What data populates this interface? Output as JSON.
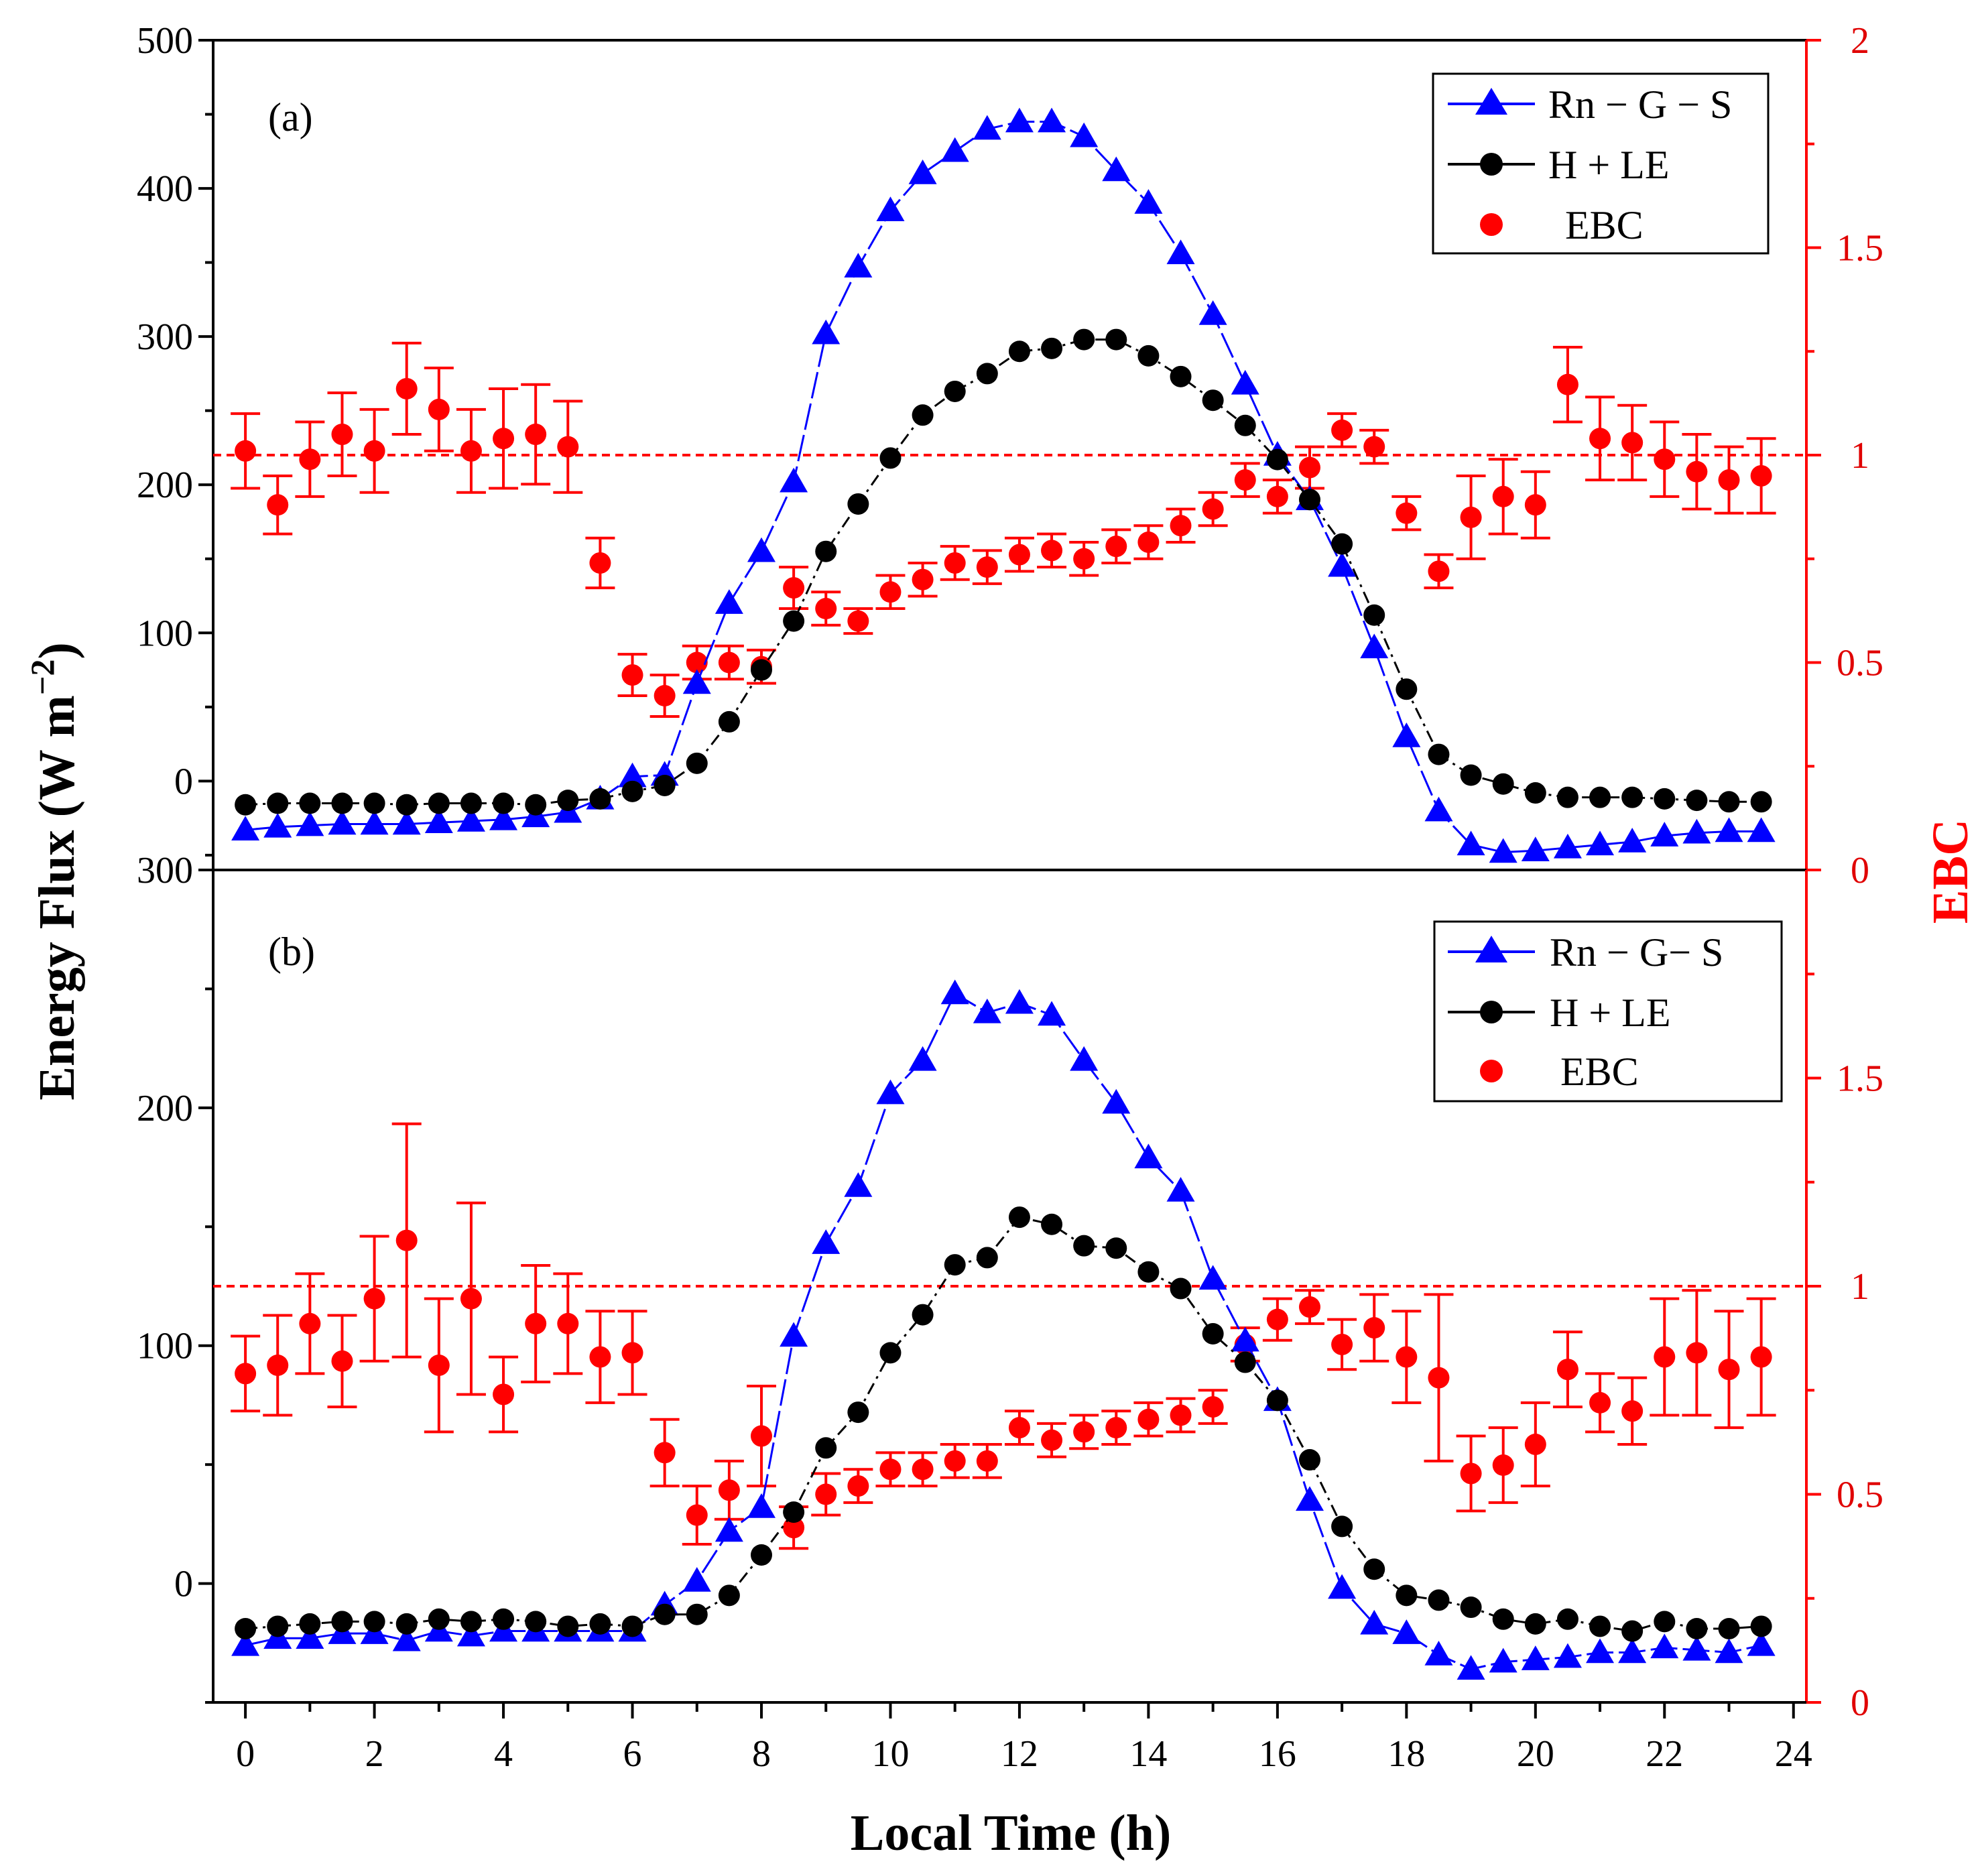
{
  "chart_data": [
    {
      "type": "line",
      "panel": "(a)",
      "x": [
        0,
        0.5,
        1,
        1.5,
        2,
        2.5,
        3,
        3.5,
        4,
        4.5,
        5,
        5.5,
        6,
        6.5,
        7,
        7.5,
        8,
        8.5,
        9,
        9.5,
        10,
        10.5,
        11,
        11.5,
        12,
        12.5,
        13,
        13.5,
        14,
        14.5,
        15,
        15.5,
        16,
        16.5,
        17,
        17.5,
        18,
        18.5,
        19,
        19.5,
        20,
        20.5,
        21,
        21.5,
        22,
        22.5,
        23,
        23.5
      ],
      "series": [
        {
          "name": "Rn − G − S",
          "axis": "left",
          "color": "#0000ff",
          "marker": "triangle",
          "values": [
            -33,
            -31,
            -30,
            -29,
            -29,
            -29,
            -28,
            -27,
            -26,
            -24,
            -21,
            -12,
            3,
            4,
            66,
            120,
            155,
            202,
            302,
            347,
            385,
            410,
            425,
            440,
            445,
            445,
            435,
            412,
            390,
            356,
            315,
            268,
            220,
            190,
            145,
            90,
            30,
            -20,
            -43,
            -48,
            -47,
            -45,
            -43,
            -41,
            -37,
            -35,
            -34,
            -34
          ]
        },
        {
          "name": "H + LE",
          "axis": "left",
          "color": "#000000",
          "marker": "circle",
          "values": [
            -16,
            -15,
            -15,
            -15,
            -15,
            -16,
            -15,
            -15,
            -15,
            -16,
            -13,
            -12,
            -7,
            -3,
            12,
            40,
            75,
            108,
            155,
            187,
            218,
            247,
            263,
            275,
            290,
            292,
            298,
            298,
            287,
            273,
            257,
            240,
            217,
            190,
            160,
            112,
            62,
            18,
            4,
            -2,
            -8,
            -11,
            -11,
            -11,
            -12,
            -13,
            -14,
            -14
          ]
        },
        {
          "name": "EBC",
          "axis": "right",
          "color": "#ff0000",
          "marker": "circle",
          "errorbars": true,
          "values": [
            1.01,
            0.88,
            0.99,
            1.05,
            1.01,
            1.16,
            1.11,
            1.01,
            1.04,
            1.05,
            1.02,
            0.74,
            0.47,
            0.42,
            0.5,
            0.5,
            0.49,
            0.68,
            0.63,
            0.6,
            0.67,
            0.7,
            0.74,
            0.73,
            0.76,
            0.77,
            0.75,
            0.78,
            0.79,
            0.83,
            0.87,
            0.94,
            0.9,
            0.97,
            1.06,
            1.02,
            0.86,
            0.72,
            0.85,
            0.9,
            0.88,
            1.17,
            1.04,
            1.03,
            0.99,
            0.96,
            0.94,
            0.95
          ],
          "errors": [
            0.09,
            0.07,
            0.09,
            0.1,
            0.1,
            0.11,
            0.1,
            0.1,
            0.12,
            0.12,
            0.11,
            0.06,
            0.05,
            0.05,
            0.04,
            0.04,
            0.04,
            0.05,
            0.04,
            0.03,
            0.04,
            0.04,
            0.04,
            0.04,
            0.04,
            0.04,
            0.04,
            0.04,
            0.04,
            0.04,
            0.04,
            0.04,
            0.04,
            0.05,
            0.04,
            0.04,
            0.04,
            0.04,
            0.1,
            0.09,
            0.08,
            0.09,
            0.1,
            0.09,
            0.09,
            0.09,
            0.08,
            0.09
          ]
        }
      ],
      "ylabel": "Energy Flux (W m−2)",
      "ylabel_main": "Energy Flux (W m",
      "ylabel_exp": "−2",
      "ylabel_close": ")",
      "y2label": "EBC",
      "ylim": [
        -60,
        500
      ],
      "y_ticks": [
        "0",
        "100",
        "200",
        "300",
        "400",
        "500"
      ],
      "y2lim": [
        0,
        2
      ],
      "y2_ticks": [
        "0",
        "0.5",
        "1",
        "1.5",
        "2"
      ],
      "reference_line": {
        "axis": "right",
        "value": 1,
        "style": "dashed",
        "color": "#ff0000"
      },
      "legend": {
        "position": "top-right",
        "entries": [
          "Rn − G − S",
          "H + LE",
          "EBC"
        ]
      }
    },
    {
      "type": "line",
      "panel": "(b)",
      "x": [
        0,
        0.5,
        1,
        1.5,
        2,
        2.5,
        3,
        3.5,
        4,
        4.5,
        5,
        5.5,
        6,
        6.5,
        7,
        7.5,
        8,
        8.5,
        9,
        9.5,
        10,
        10.5,
        11,
        11.5,
        12,
        12.5,
        13,
        13.5,
        14,
        14.5,
        15,
        15.5,
        16,
        16.5,
        17,
        17.5,
        18,
        18.5,
        19,
        19.5,
        20,
        20.5,
        21,
        21.5,
        22,
        22.5,
        23,
        23.5
      ],
      "series": [
        {
          "name": "Rn − G − S",
          "axis": "left",
          "color": "#0000ff",
          "marker": "triangle",
          "values": [
            -26,
            -23,
            -23,
            -21,
            -21,
            -24,
            -20,
            -22,
            -20,
            -20,
            -20,
            -20,
            -20,
            -9,
            1,
            22,
            32,
            104,
            143,
            167,
            206,
            220,
            248,
            240,
            244,
            239,
            220,
            202,
            179,
            165,
            128,
            102,
            77,
            35,
            -2,
            -17,
            -21,
            -30,
            -36,
            -33,
            -32,
            -31,
            -29,
            -29,
            -27,
            -28,
            -29,
            -26
          ]
        },
        {
          "name": "H + LE",
          "axis": "left",
          "color": "#000000",
          "marker": "circle",
          "values": [
            -19,
            -18,
            -17,
            -16,
            -16,
            -17,
            -15,
            -16,
            -15,
            -16,
            -18,
            -17,
            -18,
            -13,
            -13,
            -5,
            12,
            30,
            57,
            72,
            97,
            113,
            134,
            137,
            154,
            151,
            142,
            141,
            131,
            124,
            105,
            93,
            77,
            52,
            24,
            6,
            -5,
            -7,
            -10,
            -15,
            -17,
            -15,
            -18,
            -20,
            -16,
            -19,
            -19,
            -18
          ]
        },
        {
          "name": "EBC",
          "axis": "right",
          "color": "#ff0000",
          "marker": "circle",
          "errorbars": true,
          "values": [
            0.79,
            0.81,
            0.91,
            0.82,
            0.97,
            1.11,
            0.81,
            0.97,
            0.74,
            0.91,
            0.91,
            0.83,
            0.84,
            0.6,
            0.45,
            0.51,
            0.64,
            0.42,
            0.5,
            0.52,
            0.56,
            0.56,
            0.58,
            0.58,
            0.66,
            0.63,
            0.65,
            0.66,
            0.68,
            0.69,
            0.71,
            0.86,
            0.92,
            0.95,
            0.86,
            0.9,
            0.83,
            0.78,
            0.55,
            0.57,
            0.62,
            0.8,
            0.72,
            0.7,
            0.83,
            0.84,
            0.8,
            0.83
          ],
          "errors": [
            0.09,
            0.12,
            0.12,
            0.11,
            0.15,
            0.28,
            0.16,
            0.23,
            0.09,
            0.14,
            0.12,
            0.11,
            0.1,
            0.08,
            0.07,
            0.07,
            0.12,
            0.05,
            0.05,
            0.04,
            0.04,
            0.04,
            0.04,
            0.04,
            0.04,
            0.04,
            0.04,
            0.04,
            0.04,
            0.04,
            0.04,
            0.04,
            0.05,
            0.04,
            0.06,
            0.08,
            0.11,
            0.2,
            0.09,
            0.09,
            0.1,
            0.09,
            0.07,
            0.08,
            0.14,
            0.15,
            0.14,
            0.14
          ]
        }
      ],
      "ylim": [
        -50,
        300
      ],
      "y_ticks": [
        "0",
        "100",
        "200",
        "300"
      ],
      "y2lim": [
        0,
        2
      ],
      "y2_ticks": [
        "0",
        "0.5",
        "1",
        "1.5"
      ],
      "reference_line": {
        "axis": "right",
        "value": 1,
        "style": "dashed",
        "color": "#ff0000"
      },
      "legend": {
        "position": "top-right",
        "entries": [
          "Rn − G− S",
          "H + LE",
          "EBC"
        ]
      },
      "xlabel": "Local Time (h)",
      "xlim": [
        -0.5,
        24.2
      ],
      "x_ticks": [
        "0",
        "2",
        "4",
        "6",
        "8",
        "10",
        "12",
        "14",
        "16",
        "18",
        "20",
        "22",
        "24"
      ]
    }
  ],
  "colors": {
    "rn": "#0000ff",
    "hle": "#000000",
    "ebc": "#ff0000"
  }
}
